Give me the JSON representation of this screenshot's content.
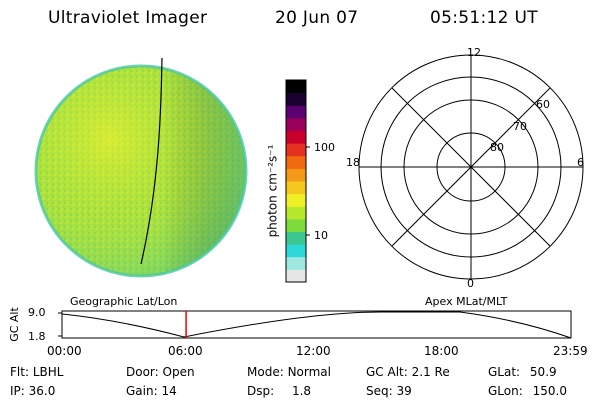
{
  "header": {
    "instrument": "Ultraviolet Imager",
    "date": "20 Jun 07",
    "time": "05:51:12 UT"
  },
  "colorbar": {
    "unit_label": "photon cm⁻²s⁻¹",
    "ticks": [
      {
        "label": "100",
        "value": 100
      },
      {
        "label": "10",
        "value": 10
      }
    ],
    "colors": [
      "#e6e6e6",
      "#9fe8e0",
      "#2cd8d8",
      "#3cc890",
      "#7ddc3c",
      "#b8e82c",
      "#f0ef28",
      "#f5c820",
      "#f59a18",
      "#f06a10",
      "#e63020",
      "#c8002a",
      "#9a005a",
      "#5a0070",
      "#1a0030",
      "#000000"
    ]
  },
  "polar": {
    "mlt_labels": {
      "top": "12",
      "left": "18",
      "right": "6",
      "bottom": "0"
    },
    "lat_labels": [
      "60",
      "70",
      "80"
    ]
  },
  "timeline": {
    "left_label": "Geographic Lat/Lon",
    "right_label": "Apex MLat/MLT",
    "y_label": "GC Alt",
    "y_ticks": [
      "9.0",
      "1.8"
    ],
    "x_ticks": [
      "00:00",
      "06:00",
      "12:00",
      "18:00",
      "23:59"
    ],
    "current_time_hours": 5.85
  },
  "info": {
    "row1": [
      {
        "key": "Flt:",
        "value": "LBHL"
      },
      {
        "key": "Door:",
        "value": "Open"
      },
      {
        "key": "Mode:",
        "value": "Normal"
      },
      {
        "key": "GC Alt:",
        "value": "2.1 Re"
      },
      {
        "key": "GLat:",
        "value": "50.9"
      }
    ],
    "row2": [
      {
        "key": "IP:",
        "value": "36.0"
      },
      {
        "key": "Gain:",
        "value": "14"
      },
      {
        "key": "Dsp:",
        "value": "1.8"
      },
      {
        "key": "Seq:",
        "value": "39"
      },
      {
        "key": "GLon:",
        "value": "150.0"
      }
    ]
  }
}
